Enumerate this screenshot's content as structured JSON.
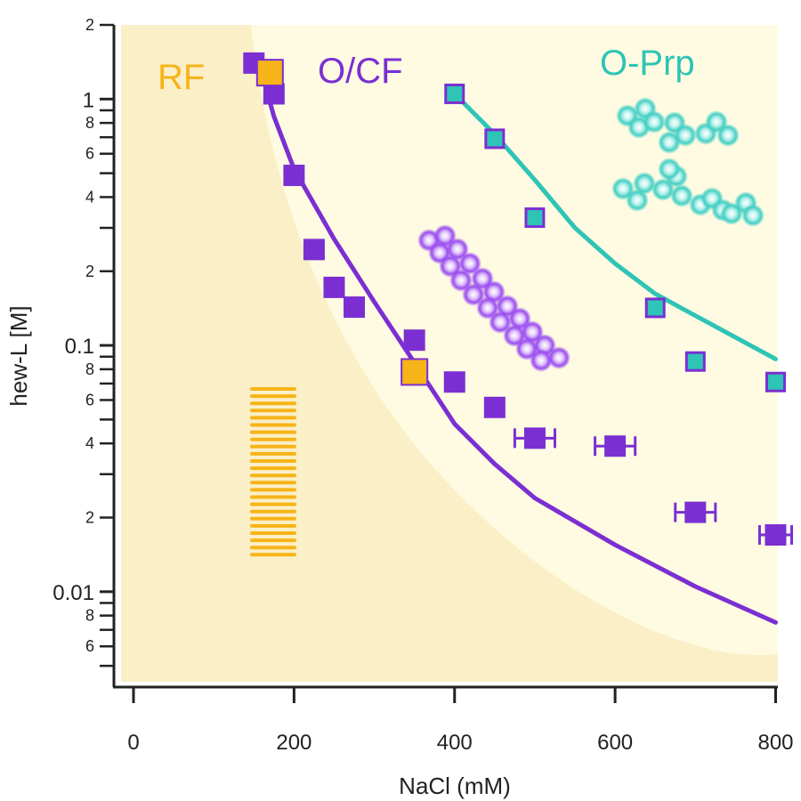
{
  "chart_data": {
    "type": "scatter",
    "xlabel": "NaCl (mM)",
    "ylabel": "hew-L [M]",
    "xlim": [
      -10,
      805
    ],
    "ylim": [
      0.0041,
      2.0
    ],
    "yscale": "log",
    "x_ticks": [
      0,
      200,
      400,
      600,
      800
    ],
    "x_tick_labels": [
      "0",
      "200",
      "400",
      "600",
      "800"
    ],
    "y_major_ticks": [
      0.01,
      0.1,
      1
    ],
    "y_major_labels": [
      "0.01",
      "0.1",
      "1"
    ],
    "y_minor_labeled": [
      {
        "value": 0.006,
        "label": "6"
      },
      {
        "value": 0.008,
        "label": "8"
      },
      {
        "value": 0.02,
        "label": "2"
      },
      {
        "value": 0.04,
        "label": "4"
      },
      {
        "value": 0.06,
        "label": "6"
      },
      {
        "value": 0.08,
        "label": "8"
      },
      {
        "value": 0.2,
        "label": "2"
      },
      {
        "value": 0.4,
        "label": "4"
      },
      {
        "value": 0.6,
        "label": "6"
      },
      {
        "value": 0.8,
        "label": "8"
      },
      {
        "value": 2,
        "label": "2"
      }
    ],
    "y_minor_unlabeled": [
      0.005,
      0.007,
      0.009,
      0.03,
      0.05,
      0.07,
      0.09,
      0.3,
      0.5,
      0.7,
      0.9
    ],
    "regions": [
      {
        "name": "RF",
        "color": "#f6b418"
      },
      {
        "name": "O/CF",
        "color": "#7b2fd2"
      },
      {
        "name": "O-Prp",
        "color": "#2ec4b6"
      }
    ],
    "colors": {
      "background_light": "#fffbe2",
      "background_dark": "#fbefc8",
      "purple": "#7b2fd2",
      "teal": "#2ec4b6",
      "orange": "#f6b418",
      "axis": "#222222"
    },
    "series": [
      {
        "name": "O/CF",
        "marker": "square",
        "color": "#7b2fd2",
        "points": [
          {
            "x": 150,
            "y": 1.4
          },
          {
            "x": 175,
            "y": 1.05
          },
          {
            "x": 200,
            "y": 0.49
          },
          {
            "x": 225,
            "y": 0.245
          },
          {
            "x": 250,
            "y": 0.172
          },
          {
            "x": 275,
            "y": 0.143
          },
          {
            "x": 350,
            "y": 0.105
          },
          {
            "x": 400,
            "y": 0.071
          },
          {
            "x": 450,
            "y": 0.056
          },
          {
            "x": 500,
            "y": 0.042,
            "xerr": 25
          },
          {
            "x": 600,
            "y": 0.039,
            "xerr": 25
          },
          {
            "x": 700,
            "y": 0.021,
            "xerr": 25
          },
          {
            "x": 800,
            "y": 0.017,
            "xerr": 20
          }
        ]
      },
      {
        "name": "RF",
        "marker": "square",
        "color": "#f6b418",
        "points": [
          {
            "x": 170,
            "y": 1.28
          },
          {
            "x": 350,
            "y": 0.078
          }
        ]
      },
      {
        "name": "O-Prp",
        "marker": "square-outlined",
        "color": "#2ec4b6",
        "points": [
          {
            "x": 400,
            "y": 1.05
          },
          {
            "x": 450,
            "y": 0.69
          },
          {
            "x": 500,
            "y": 0.33
          },
          {
            "x": 650,
            "y": 0.142
          },
          {
            "x": 700,
            "y": 0.086
          },
          {
            "x": 800,
            "y": 0.071
          }
        ]
      }
    ],
    "curves": [
      {
        "name": "O/CF boundary",
        "color": "#7b2fd2",
        "points": [
          [
            155,
            1.45
          ],
          [
            175,
            0.85
          ],
          [
            200,
            0.52
          ],
          [
            250,
            0.27
          ],
          [
            300,
            0.15
          ],
          [
            350,
            0.085
          ],
          [
            400,
            0.048
          ],
          [
            450,
            0.033
          ],
          [
            500,
            0.024
          ],
          [
            600,
            0.0155
          ],
          [
            700,
            0.0105
          ],
          [
            800,
            0.0075
          ]
        ]
      },
      {
        "name": "O-Prp boundary",
        "color": "#2ec4b6",
        "points": [
          [
            400,
            1.05
          ],
          [
            450,
            0.72
          ],
          [
            500,
            0.47
          ],
          [
            550,
            0.3
          ],
          [
            600,
            0.215
          ],
          [
            650,
            0.162
          ],
          [
            700,
            0.132
          ],
          [
            800,
            0.088
          ]
        ]
      }
    ]
  }
}
